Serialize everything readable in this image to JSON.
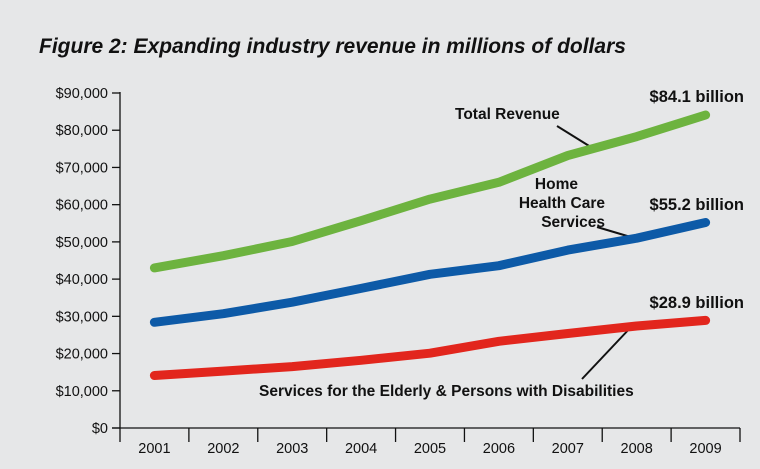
{
  "chart_data": {
    "type": "line",
    "title": "Figure 2: Expanding industry revenue in millions of dollars",
    "xlabel": "",
    "ylabel": "",
    "x": [
      "2001",
      "2002",
      "2003",
      "2004",
      "2005",
      "2006",
      "2007",
      "2008",
      "2009"
    ],
    "y_ticks": [
      "$0",
      "$10,000",
      "$20,000",
      "$30,000",
      "$40,000",
      "$50,000",
      "$60,000",
      "$70,000",
      "$80,000",
      "$90,000"
    ],
    "ylim": [
      0,
      90000
    ],
    "grid": false,
    "legend": "none (series labeled directly)",
    "series": [
      {
        "name": "Total Revenue",
        "color": "#6db33f",
        "values": [
          43000,
          46300,
          50100,
          55700,
          61500,
          66000,
          73200,
          78300,
          84100
        ],
        "end_label": "$84.1 billion"
      },
      {
        "name": "Home Health Care Services",
        "label_lines": [
          "Home",
          "Health Care",
          "Services"
        ],
        "color": "#0d5aa7",
        "values": [
          28400,
          30700,
          33800,
          37500,
          41300,
          43600,
          47800,
          51000,
          55200
        ],
        "end_label": "$55.2 billion"
      },
      {
        "name": "Services for the Elderly & Persons with Disabilities",
        "color": "#e2261d",
        "values": [
          14100,
          15300,
          16500,
          18200,
          20100,
          23300,
          25400,
          27400,
          28900
        ],
        "end_label": "$28.9 billion"
      }
    ]
  }
}
